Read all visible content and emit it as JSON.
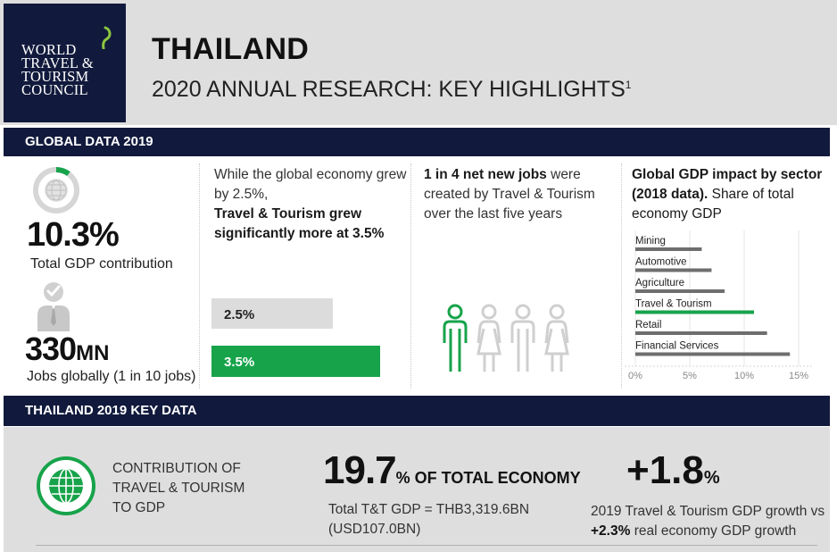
{
  "header": {
    "logo_lines": [
      "WORLD",
      "TRAVEL &",
      "TOURISM",
      "COUNCIL"
    ],
    "title": "THAILAND",
    "subtitle": "2020 ANNUAL RESEARCH: KEY HIGHLIGHTS",
    "subtitle_footnote": "1"
  },
  "global_section": {
    "heading": "GLOBAL DATA 2019",
    "gdp_contribution": {
      "value": "10.3%",
      "label": "Total GDP contribution",
      "donut_fraction": 0.103
    },
    "jobs": {
      "value": "330",
      "unit": "MN",
      "label": "Jobs globally (1 in 10 jobs)"
    },
    "economy": {
      "text_plain": "While the global economy grew by 2.5%,",
      "text_strong": "Travel & Tourism grew significantly more at 3.5%",
      "bar_global_label": "2.5%",
      "bar_tt_label": "3.5%"
    },
    "new_jobs": {
      "text_strong": "1 in 4 net new jobs",
      "text_plain": " were created by Travel & Tourism over the last five years"
    },
    "sector_impact": {
      "title_strong": "Global GDP impact by sector (2018 data).",
      "title_plain": " Share of total economy GDP"
    }
  },
  "chart_data": {
    "type": "bar",
    "orientation": "horizontal",
    "title": "Global GDP impact by sector (2018 data). Share of total economy GDP",
    "categories": [
      "Mining",
      "Automotive",
      "Agriculture",
      "Travel & Tourism",
      "Retail",
      "Financial Services"
    ],
    "values": [
      6.1,
      7.0,
      8.2,
      10.9,
      12.1,
      14.2
    ],
    "highlight": "Travel & Tourism",
    "xlim": [
      0,
      15
    ],
    "xticks": [
      "0%",
      "5%",
      "10%",
      "15%"
    ],
    "colors": {
      "default": "#6e6e6e",
      "highlight": "#17a34a"
    }
  },
  "thailand_section": {
    "heading": "THAILAND 2019 KEY DATA",
    "contribution_label": "CONTRIBUTION OF TRAVEL & TOURISM TO GDP",
    "share_value": "19.7",
    "share_unit": "% OF TOTAL ECONOMY",
    "total_gdp_text": "Total T&T GDP = THB3,319.6BN (USD107.0BN)",
    "growth_value": "+1.8",
    "growth_unit": "%",
    "growth_text_plain": "2019 Travel & Tourism GDP growth vs ",
    "growth_text_strong": "+2.3%",
    "growth_text_tail": " real economy GDP growth"
  },
  "colors": {
    "navy": "#111a3c",
    "green": "#17a34a",
    "panel_grey": "#dedede"
  }
}
